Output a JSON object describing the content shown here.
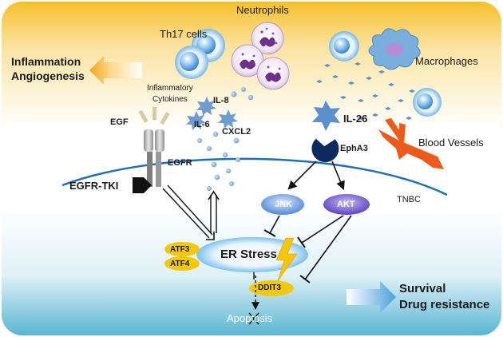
{
  "labels": {
    "neutrophils": "Neutrophils",
    "th17": "Th17 cells",
    "inflammation": "Inflammation",
    "angiogenesis": "Angiogenesis",
    "inflammatory": "Inflammatory",
    "cytokines": "Cytokines",
    "il8": "IL-8",
    "il6": "IL-6",
    "cxcl2": "CXCL2",
    "egf": "EGF",
    "egfr": "EGFR",
    "egfr_tki": "EGFR-TKI",
    "il26": "IL-26",
    "epha3": "EphA3",
    "macrophages": "Macrophages",
    "blood_vessels": "Blood Vessels",
    "jnk": "JNK",
    "akt": "AKT",
    "tnbc": "TNBC",
    "atf3": "ATF3",
    "atf4": "ATF4",
    "er_stress": "ER Stress",
    "ddit3": "DDIT3",
    "apoptosis": "Apoptosis",
    "survival": "Survival",
    "drug_resistance": "Drug resistance"
  },
  "colors": {
    "bg_top": "#f5c431",
    "bg_bottom": "#5fb8d3",
    "membrane": "#1f6fb5",
    "jnk_fill": "#4a86d9",
    "akt_fill": "#5a3ec4",
    "atf_fill": "#f2c80f",
    "er_fill": "#4aa8e8",
    "arrow_orange": "#f0a81e",
    "vessel": "#ec5a1c"
  }
}
